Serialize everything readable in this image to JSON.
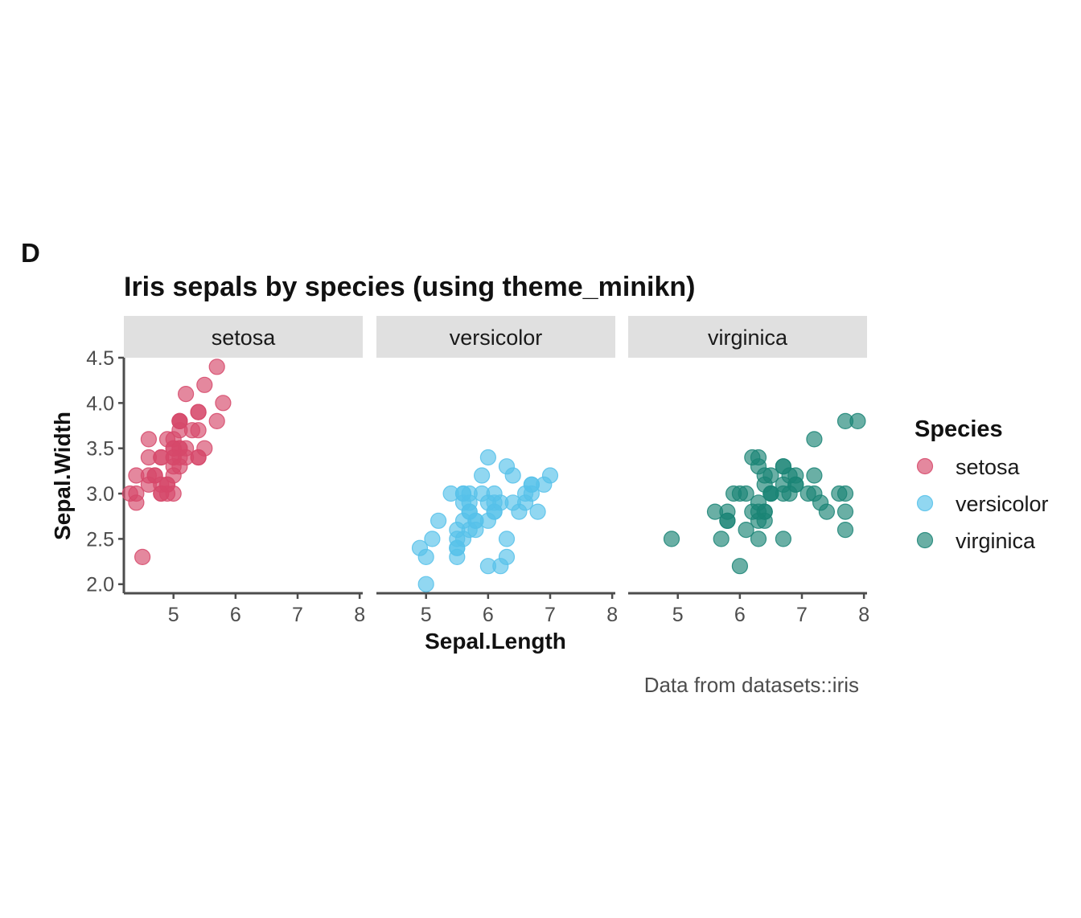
{
  "panel_tag": "D",
  "chart_data": {
    "type": "scatter",
    "title": "Iris sepals by species (using theme_minikn)",
    "xlabel": "Sepal.Length",
    "ylabel": "Sepal.Width",
    "caption": "Data from datasets::iris",
    "facet_by": "Species",
    "xlim": [
      4.2,
      8.05
    ],
    "ylim": [
      1.9,
      4.5
    ],
    "x_ticks": [
      5,
      6,
      7,
      8
    ],
    "y_ticks": [
      2.0,
      2.5,
      3.0,
      3.5,
      4.0,
      4.5
    ],
    "y_tick_labels": [
      "2.0",
      "2.5",
      "3.0",
      "3.5",
      "4.0",
      "4.5"
    ],
    "grid": false,
    "legend": {
      "title": "Species",
      "position": "right"
    },
    "series": [
      {
        "name": "setosa",
        "color": "#D6486A",
        "points": [
          [
            5.1,
            3.5
          ],
          [
            4.9,
            3.0
          ],
          [
            4.7,
            3.2
          ],
          [
            4.6,
            3.1
          ],
          [
            5.0,
            3.6
          ],
          [
            5.4,
            3.9
          ],
          [
            4.6,
            3.4
          ],
          [
            5.0,
            3.4
          ],
          [
            4.4,
            2.9
          ],
          [
            4.9,
            3.1
          ],
          [
            5.4,
            3.7
          ],
          [
            4.8,
            3.4
          ],
          [
            4.8,
            3.0
          ],
          [
            4.3,
            3.0
          ],
          [
            5.8,
            4.0
          ],
          [
            5.7,
            4.4
          ],
          [
            5.4,
            3.9
          ],
          [
            5.1,
            3.5
          ],
          [
            5.7,
            3.8
          ],
          [
            5.1,
            3.8
          ],
          [
            5.4,
            3.4
          ],
          [
            5.1,
            3.7
          ],
          [
            4.6,
            3.6
          ],
          [
            5.1,
            3.3
          ],
          [
            4.8,
            3.4
          ],
          [
            5.0,
            3.0
          ],
          [
            5.0,
            3.4
          ],
          [
            5.2,
            3.5
          ],
          [
            5.2,
            3.4
          ],
          [
            4.7,
            3.2
          ],
          [
            4.8,
            3.1
          ],
          [
            5.4,
            3.4
          ],
          [
            5.2,
            4.1
          ],
          [
            5.5,
            4.2
          ],
          [
            4.9,
            3.1
          ],
          [
            5.0,
            3.2
          ],
          [
            5.5,
            3.5
          ],
          [
            4.9,
            3.6
          ],
          [
            4.4,
            3.0
          ],
          [
            5.1,
            3.4
          ],
          [
            5.0,
            3.5
          ],
          [
            4.5,
            2.3
          ],
          [
            4.4,
            3.2
          ],
          [
            5.0,
            3.5
          ],
          [
            5.1,
            3.8
          ],
          [
            4.8,
            3.0
          ],
          [
            5.1,
            3.8
          ],
          [
            4.6,
            3.2
          ],
          [
            5.3,
            3.7
          ],
          [
            5.0,
            3.3
          ]
        ]
      },
      {
        "name": "versicolor",
        "color": "#56C1EA",
        "points": [
          [
            7.0,
            3.2
          ],
          [
            6.4,
            3.2
          ],
          [
            6.9,
            3.1
          ],
          [
            5.5,
            2.3
          ],
          [
            6.5,
            2.8
          ],
          [
            5.7,
            2.8
          ],
          [
            6.3,
            3.3
          ],
          [
            4.9,
            2.4
          ],
          [
            6.6,
            2.9
          ],
          [
            5.2,
            2.7
          ],
          [
            5.0,
            2.0
          ],
          [
            5.9,
            3.0
          ],
          [
            6.0,
            2.2
          ],
          [
            6.1,
            2.9
          ],
          [
            5.6,
            2.9
          ],
          [
            6.7,
            3.1
          ],
          [
            5.6,
            3.0
          ],
          [
            5.8,
            2.7
          ],
          [
            6.2,
            2.2
          ],
          [
            5.6,
            2.5
          ],
          [
            5.9,
            3.2
          ],
          [
            6.1,
            2.8
          ],
          [
            6.3,
            2.5
          ],
          [
            6.1,
            2.8
          ],
          [
            6.4,
            2.9
          ],
          [
            6.6,
            3.0
          ],
          [
            6.8,
            2.8
          ],
          [
            6.7,
            3.0
          ],
          [
            6.0,
            2.9
          ],
          [
            5.7,
            2.6
          ],
          [
            5.5,
            2.4
          ],
          [
            5.5,
            2.4
          ],
          [
            5.8,
            2.7
          ],
          [
            6.0,
            2.7
          ],
          [
            5.4,
            3.0
          ],
          [
            6.0,
            3.4
          ],
          [
            6.7,
            3.1
          ],
          [
            6.3,
            2.3
          ],
          [
            5.6,
            3.0
          ],
          [
            5.5,
            2.5
          ],
          [
            5.5,
            2.6
          ],
          [
            6.1,
            3.0
          ],
          [
            5.8,
            2.6
          ],
          [
            5.0,
            2.3
          ],
          [
            5.6,
            2.7
          ],
          [
            5.7,
            3.0
          ],
          [
            5.7,
            2.9
          ],
          [
            6.2,
            2.9
          ],
          [
            5.1,
            2.5
          ],
          [
            5.7,
            2.8
          ]
        ]
      },
      {
        "name": "virginica",
        "color": "#1A8475",
        "points": [
          [
            6.3,
            3.3
          ],
          [
            5.8,
            2.7
          ],
          [
            7.1,
            3.0
          ],
          [
            6.3,
            2.9
          ],
          [
            6.5,
            3.0
          ],
          [
            7.6,
            3.0
          ],
          [
            4.9,
            2.5
          ],
          [
            7.3,
            2.9
          ],
          [
            6.7,
            2.5
          ],
          [
            7.2,
            3.6
          ],
          [
            6.5,
            3.2
          ],
          [
            6.4,
            2.7
          ],
          [
            6.8,
            3.0
          ],
          [
            5.7,
            2.5
          ],
          [
            5.8,
            2.8
          ],
          [
            6.4,
            3.2
          ],
          [
            6.5,
            3.0
          ],
          [
            7.7,
            3.8
          ],
          [
            7.7,
            2.6
          ],
          [
            6.0,
            2.2
          ],
          [
            6.9,
            3.2
          ],
          [
            5.6,
            2.8
          ],
          [
            7.7,
            2.8
          ],
          [
            6.3,
            2.7
          ],
          [
            6.7,
            3.3
          ],
          [
            7.2,
            3.2
          ],
          [
            6.2,
            2.8
          ],
          [
            6.1,
            3.0
          ],
          [
            6.4,
            2.8
          ],
          [
            7.2,
            3.0
          ],
          [
            7.4,
            2.8
          ],
          [
            7.9,
            3.8
          ],
          [
            6.4,
            2.8
          ],
          [
            6.3,
            2.8
          ],
          [
            6.1,
            2.6
          ],
          [
            7.7,
            3.0
          ],
          [
            6.3,
            3.4
          ],
          [
            6.4,
            3.1
          ],
          [
            6.0,
            3.0
          ],
          [
            6.9,
            3.1
          ],
          [
            6.7,
            3.1
          ],
          [
            6.9,
            3.1
          ],
          [
            5.8,
            2.7
          ],
          [
            6.8,
            3.2
          ],
          [
            6.7,
            3.3
          ],
          [
            6.7,
            3.0
          ],
          [
            6.3,
            2.5
          ],
          [
            6.5,
            3.0
          ],
          [
            6.2,
            3.4
          ],
          [
            5.9,
            3.0
          ]
        ]
      }
    ]
  }
}
